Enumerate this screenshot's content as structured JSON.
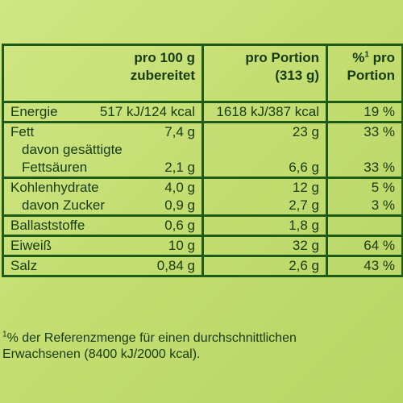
{
  "header": {
    "col2_line1": "pro 100 g",
    "col2_line2": "zubereitet",
    "col3_line1": "pro Portion",
    "col3_line2": "(313 g)",
    "col4_line1_sup": "1",
    "col4_line1_pre": "%",
    "col4_line1_post": " pro",
    "col4_line2": "Portion"
  },
  "rows": {
    "energie": {
      "label": "Energie",
      "per100": "517 kJ/124 kcal",
      "portion": "1618 kJ/387 kcal",
      "percent": "19 %"
    },
    "fett": {
      "label": "Fett",
      "per100": "7,4 g",
      "portion": "23 g",
      "percent": "33 %"
    },
    "fett_sub_line1": "davon gesättigte",
    "fett_sub": {
      "label": "Fettsäuren",
      "per100": "2,1 g",
      "portion": "6,6 g",
      "percent": "33 %"
    },
    "kohlenhydrate": {
      "label": "Kohlenhydrate",
      "per100": "4,0 g",
      "portion": "12 g",
      "percent": "5 %"
    },
    "zucker": {
      "label": "davon Zucker",
      "per100": "0,9 g",
      "portion": "2,7 g",
      "percent": "3 %"
    },
    "ballaststoffe": {
      "label": "Ballaststoffe",
      "per100": "0,6 g",
      "portion": "1,8 g",
      "percent": ""
    },
    "eiweiss": {
      "label": "Eiweiß",
      "per100": "10 g",
      "portion": "32 g",
      "percent": "64 %"
    },
    "salz": {
      "label": "Salz",
      "per100": "0,84 g",
      "portion": "2,6 g",
      "percent": "43 %"
    }
  },
  "footnote": {
    "sup": "1",
    "line1": "% der Referenzmenge für einen durchschnittlichen",
    "line2": "Erwachsenen (8400 kJ/2000 kcal)."
  }
}
